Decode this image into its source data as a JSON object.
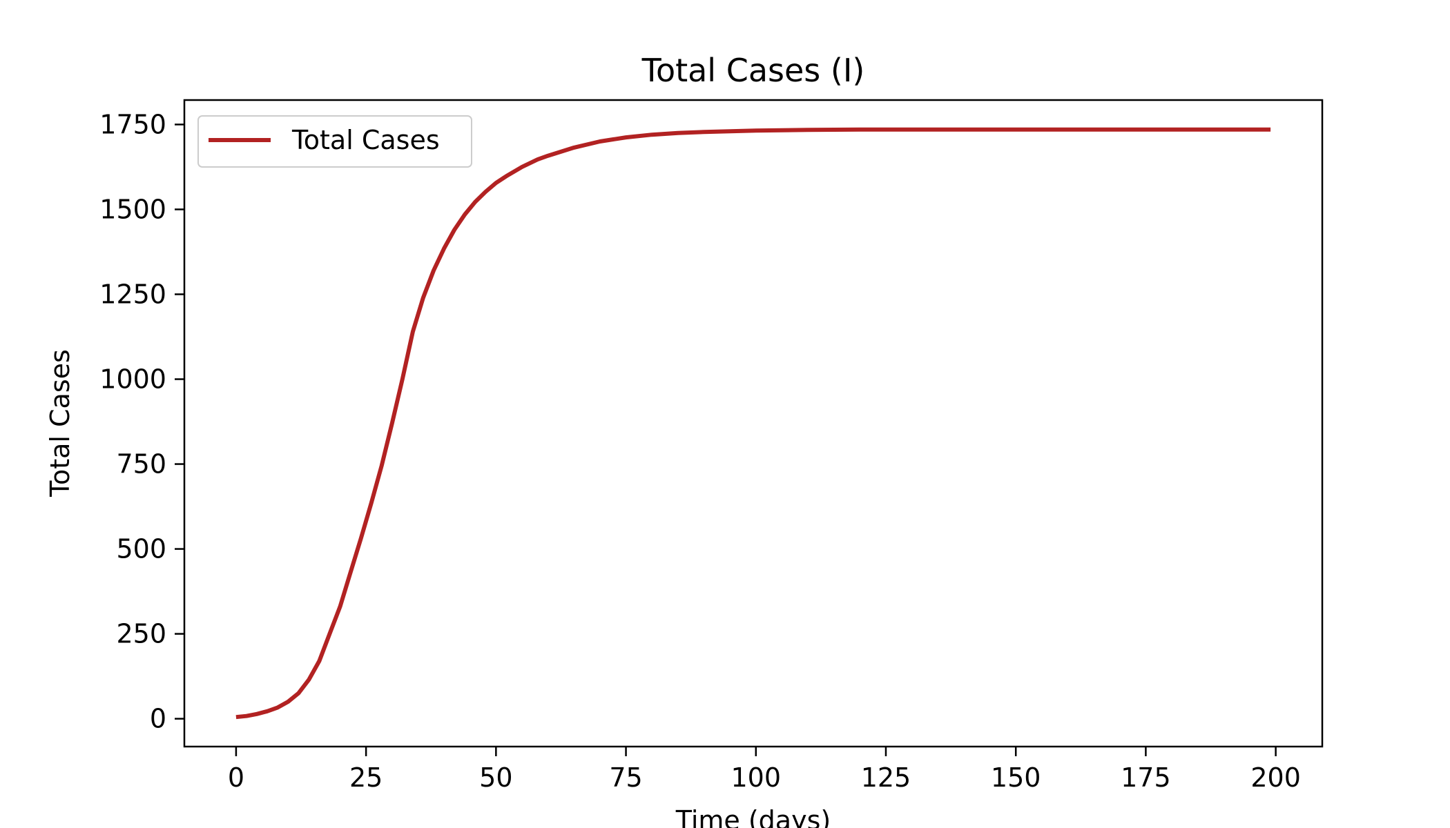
{
  "chart_data": {
    "type": "line",
    "title": "Total Cases (I)",
    "xlabel": "Time (days)",
    "ylabel": "Total Cases",
    "xlim": [
      -9.95,
      208.95
    ],
    "ylim": [
      -82,
      1822
    ],
    "x_ticks": [
      0,
      25,
      50,
      75,
      100,
      125,
      150,
      175,
      200
    ],
    "y_ticks": [
      0,
      250,
      500,
      750,
      1000,
      1250,
      1500,
      1750
    ],
    "grid": false,
    "legend": {
      "position": "top-left",
      "entries": [
        "Total Cases"
      ]
    },
    "series": [
      {
        "name": "Total Cases",
        "color": "#b22222",
        "x": [
          0,
          2,
          4,
          6,
          8,
          10,
          12,
          14,
          16,
          18,
          20,
          22,
          24,
          26,
          28,
          30,
          32,
          34,
          36,
          38,
          40,
          42,
          44,
          46,
          48,
          50,
          52,
          55,
          58,
          60,
          65,
          70,
          75,
          80,
          85,
          90,
          95,
          100,
          110,
          120,
          130,
          140,
          150,
          160,
          170,
          180,
          190,
          199
        ],
        "y": [
          5,
          8,
          14,
          22,
          33,
          50,
          75,
          115,
          170,
          250,
          330,
          430,
          530,
          635,
          745,
          870,
          1000,
          1140,
          1240,
          1320,
          1385,
          1440,
          1485,
          1522,
          1552,
          1578,
          1598,
          1625,
          1647,
          1658,
          1682,
          1700,
          1712,
          1720,
          1725,
          1728,
          1730,
          1732,
          1734,
          1735,
          1735,
          1735,
          1735,
          1735,
          1735,
          1735,
          1735,
          1735
        ]
      }
    ]
  }
}
